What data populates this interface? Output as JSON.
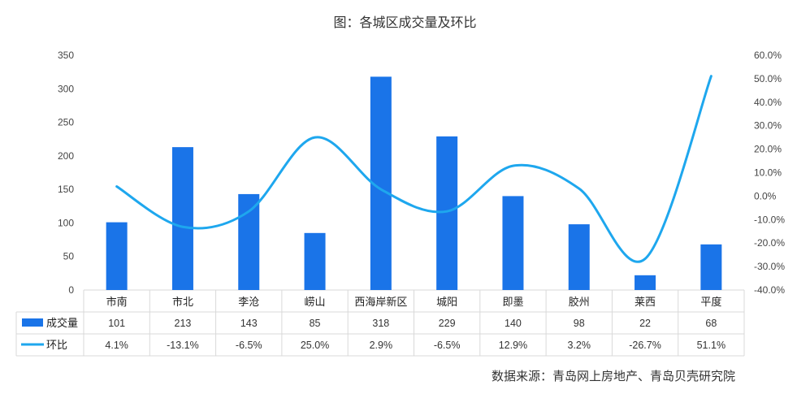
{
  "title": "图：各城区成交量及环比",
  "source": "数据来源：青岛网上房地产、青岛贝壳研究院",
  "colors": {
    "bar": "#1a74e8",
    "line": "#1ea7ee",
    "grid": "#d9d9d9"
  },
  "chart_data": {
    "type": "bar+line",
    "categories": [
      "市南",
      "市北",
      "李沧",
      "崂山",
      "西海岸新区",
      "城阳",
      "即墨",
      "胶州",
      "莱西",
      "平度"
    ],
    "series": [
      {
        "name": "成交量",
        "type": "bar",
        "axis": "left",
        "values": [
          101,
          213,
          143,
          85,
          318,
          229,
          140,
          98,
          22,
          68
        ],
        "labels": [
          "101",
          "213",
          "143",
          "85",
          "318",
          "229",
          "140",
          "98",
          "22",
          "68"
        ]
      },
      {
        "name": "环比",
        "type": "line",
        "axis": "right",
        "values": [
          4.1,
          -13.1,
          -6.5,
          25.0,
          2.9,
          -6.5,
          12.9,
          3.2,
          -26.7,
          51.1
        ],
        "labels": [
          "4.1%",
          "-13.1%",
          "-6.5%",
          "25.0%",
          "2.9%",
          "-6.5%",
          "12.9%",
          "3.2%",
          "-26.7%",
          "51.1%"
        ]
      }
    ],
    "y_left": {
      "min": 0,
      "max": 350,
      "ticks": [
        "0",
        "50",
        "100",
        "150",
        "200",
        "250",
        "300",
        "350"
      ]
    },
    "y_right": {
      "min": -40,
      "max": 60,
      "ticks": [
        "-40.0%",
        "-30.0%",
        "-20.0%",
        "-10.0%",
        "0.0%",
        "10.0%",
        "20.0%",
        "30.0%",
        "40.0%",
        "50.0%",
        "60.0%"
      ]
    },
    "legend": "data-table",
    "grid": false
  }
}
